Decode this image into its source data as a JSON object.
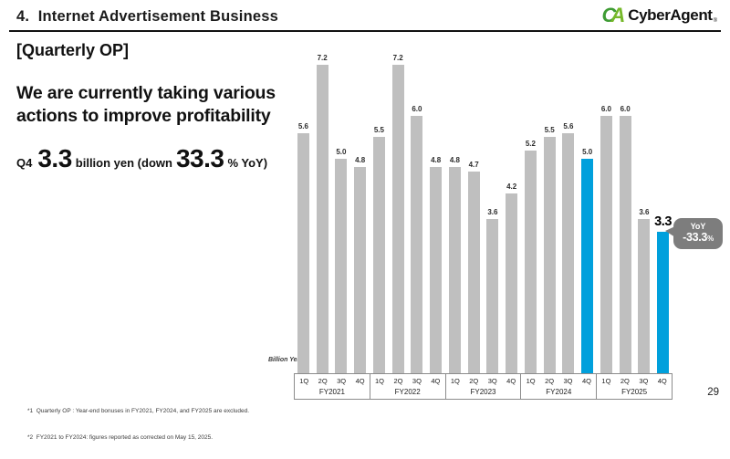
{
  "slide": {
    "title": "4.  Internet Advertisement Business",
    "page_number": "29",
    "logo": {
      "mark_c": "C",
      "mark_a": "A",
      "text": "CyberAgent",
      "reg": "®",
      "color_c": "#3f9c35",
      "color_a": "#76b82a"
    },
    "left_panel": {
      "section_label": "[Quarterly OP]",
      "headline_line1": "We are currently taking various",
      "headline_line2": "actions to improve profitability",
      "kpi": {
        "prefix": "Q4",
        "value": "3.3",
        "mid": "billion yen (down",
        "pct_value": "33.3",
        "suffix": "% YoY)"
      }
    },
    "footnotes": [
      "*1  Quarterly OP : Year-end bonuses in FY2021, FY2024, and FY2025 are excluded.",
      "*2  FY2021 to FY2024: figures reported as corrected on May 15, 2025."
    ]
  },
  "chart_data": {
    "type": "bar",
    "title": "Quarterly OP",
    "unit_label": "Billion Yen",
    "ylim": [
      0,
      7.4
    ],
    "grid": false,
    "legend": false,
    "bar_color": "#bfbfbf",
    "highlight_color": "#00a0dc",
    "callout_color": "#7d7d7d",
    "groups": [
      {
        "fiscal_year": "FY2021",
        "quarters": [
          "1Q",
          "2Q",
          "3Q",
          "4Q"
        ],
        "values": [
          5.6,
          7.2,
          5.0,
          4.8
        ]
      },
      {
        "fiscal_year": "FY2022",
        "quarters": [
          "1Q",
          "2Q",
          "3Q",
          "4Q"
        ],
        "values": [
          5.5,
          7.2,
          6.0,
          4.8
        ]
      },
      {
        "fiscal_year": "FY2023",
        "quarters": [
          "1Q",
          "2Q",
          "3Q",
          "4Q"
        ],
        "values": [
          4.8,
          4.7,
          3.6,
          4.2
        ]
      },
      {
        "fiscal_year": "FY2024",
        "quarters": [
          "1Q",
          "2Q",
          "3Q",
          "4Q"
        ],
        "values": [
          5.2,
          5.5,
          5.6,
          5.0
        ],
        "highlight_quarter": "4Q"
      },
      {
        "fiscal_year": "FY2025",
        "quarters": [
          "1Q",
          "2Q",
          "3Q",
          "4Q"
        ],
        "values": [
          6.0,
          6.0,
          3.6,
          3.3
        ],
        "highlight_quarter": "4Q"
      }
    ],
    "emphasis": {
      "group_index": 4,
      "value_index": 3
    },
    "callout": {
      "line1": "YoY",
      "line2": "-33.3",
      "pct": "%"
    }
  }
}
